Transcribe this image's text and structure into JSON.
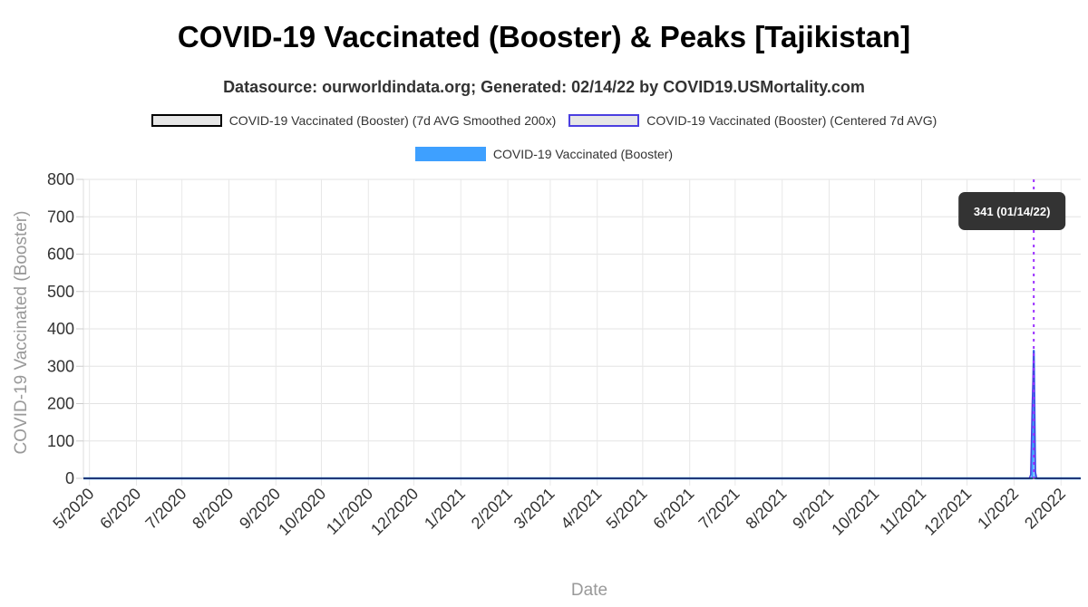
{
  "chart_data": {
    "type": "line",
    "title": "COVID-19 Vaccinated (Booster) & Peaks [Tajikistan]",
    "subtitle": "Datasource: ourworldindata.org; Generated: 02/14/22 by COVID19.USMortality.com",
    "xlabel": "Date",
    "ylabel": "COVID-19 Vaccinated (Booster)",
    "ylim": [
      0,
      800
    ],
    "yticks": [
      0,
      100,
      200,
      300,
      400,
      500,
      600,
      700,
      800
    ],
    "xlim": [
      "2020-04-27",
      "2022-02-14"
    ],
    "xticks": [
      "5/2020",
      "6/2020",
      "7/2020",
      "8/2020",
      "9/2020",
      "10/2020",
      "11/2020",
      "12/2020",
      "1/2021",
      "2/2021",
      "3/2021",
      "4/2021",
      "5/2021",
      "6/2021",
      "7/2021",
      "8/2021",
      "9/2021",
      "10/2021",
      "11/2021",
      "12/2021",
      "1/2022",
      "2/2022"
    ],
    "xtick_dates": [
      "2020-05-01",
      "2020-06-01",
      "2020-07-01",
      "2020-08-01",
      "2020-09-01",
      "2020-10-01",
      "2020-11-01",
      "2020-12-01",
      "2021-01-01",
      "2021-02-01",
      "2021-03-01",
      "2021-04-01",
      "2021-05-01",
      "2021-06-01",
      "2021-07-01",
      "2021-08-01",
      "2021-09-01",
      "2021-10-01",
      "2021-11-01",
      "2021-12-01",
      "2022-01-01",
      "2022-02-01"
    ],
    "grid": true,
    "legend_position": "top-center",
    "legend": [
      {
        "label": "COVID-19 Vaccinated (Booster) (7d AVG Smoothed 200x)",
        "color": "#000000"
      },
      {
        "label": "COVID-19 Vaccinated (Booster) (Centered 7d AVG)",
        "color": "#4b3fe0"
      },
      {
        "label": "COVID-19 Vaccinated (Booster)",
        "color": "#3ea0ff"
      }
    ],
    "series": [
      {
        "name": "COVID-19 Vaccinated (Booster)",
        "color": "#3ea0ff",
        "points": [
          [
            "2020-04-27",
            0
          ],
          [
            "2022-01-11",
            0
          ],
          [
            "2022-01-13",
            0
          ],
          [
            "2022-01-14",
            341
          ],
          [
            "2022-01-15",
            0
          ],
          [
            "2022-02-14",
            0
          ]
        ]
      },
      {
        "name": "COVID-19 Vaccinated (Booster) (Centered 7d AVG)",
        "color": "#4b3fe0",
        "points": [
          [
            "2020-04-27",
            0
          ],
          [
            "2022-01-11",
            0
          ],
          [
            "2022-01-12",
            10
          ],
          [
            "2022-01-13",
            200
          ],
          [
            "2022-01-14",
            341
          ],
          [
            "2022-01-15",
            20
          ],
          [
            "2022-01-16",
            0
          ],
          [
            "2022-02-14",
            0
          ]
        ]
      },
      {
        "name": "COVID-19 Vaccinated (Booster) (7d AVG Smoothed 200x)",
        "color": "#000000",
        "points": [
          [
            "2020-04-27",
            0
          ],
          [
            "2022-02-14",
            0
          ]
        ]
      }
    ],
    "peak_annotation": {
      "date": "2022-01-14",
      "value": 341,
      "label": "341 (01/14/22)",
      "line_color": "#9b30ff"
    }
  }
}
